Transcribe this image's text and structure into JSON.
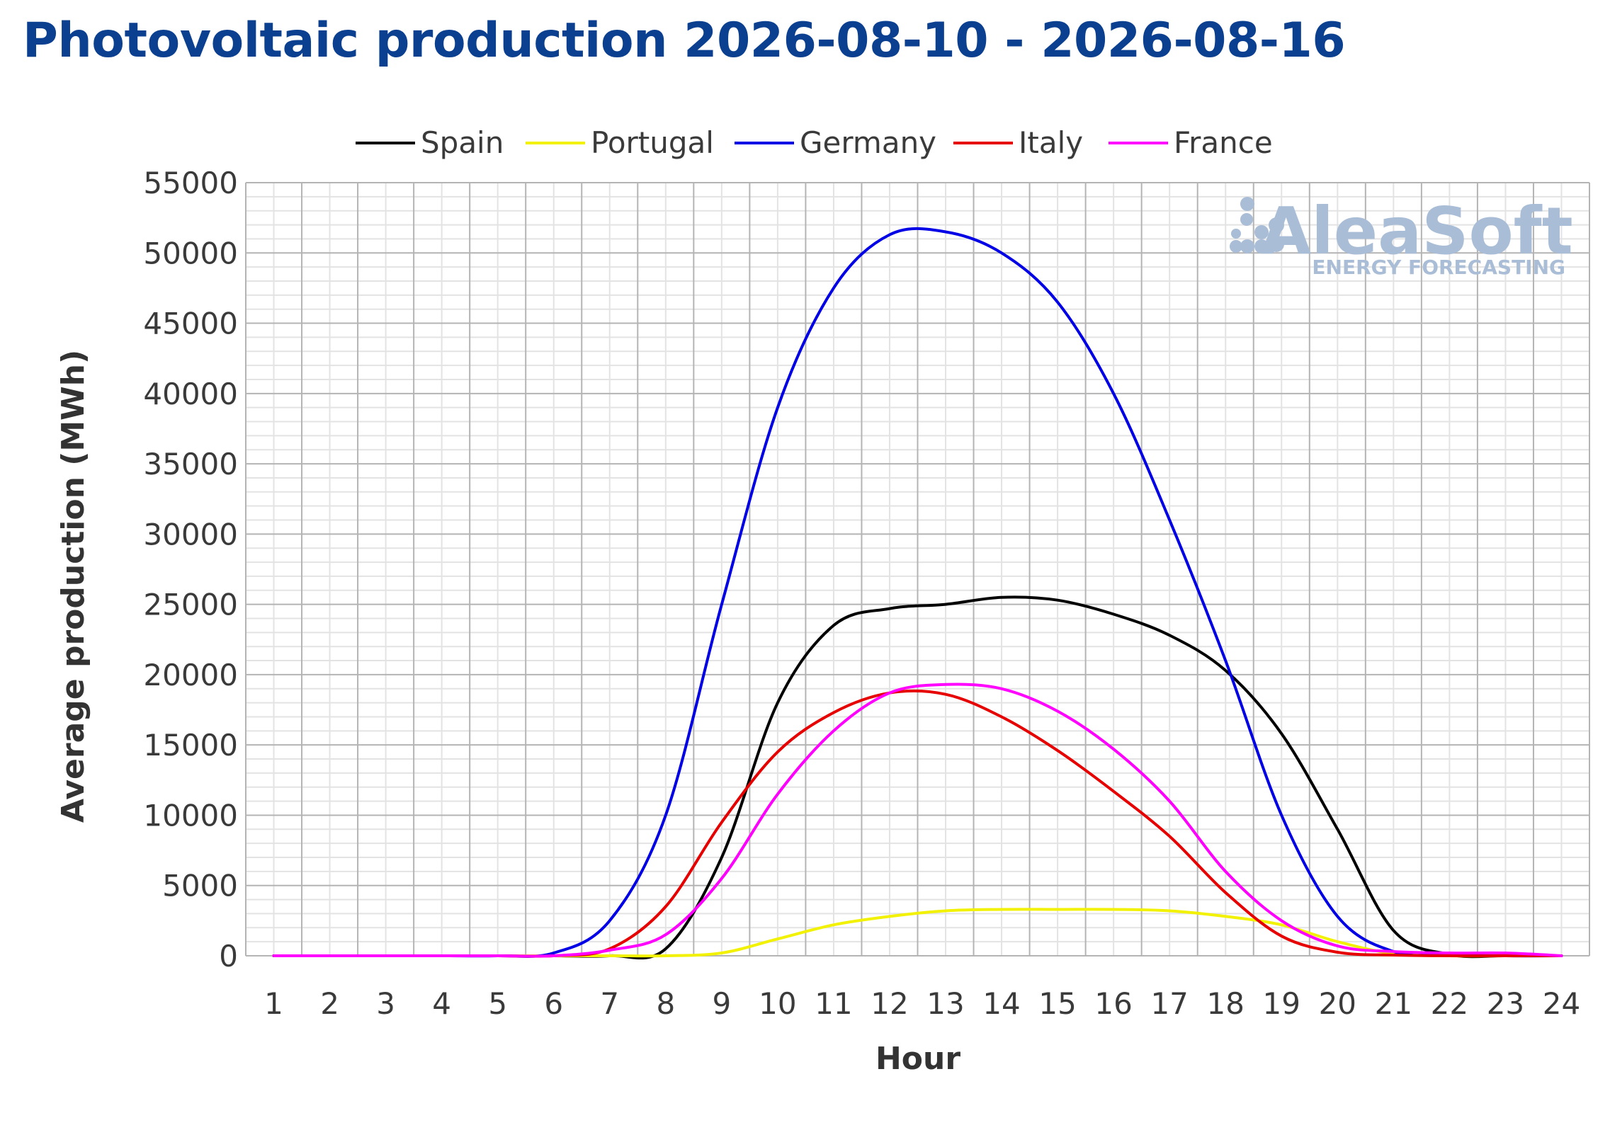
{
  "chart_data": {
    "type": "line",
    "title": "Photovoltaic production 2026-08-10 - 2026-08-16",
    "xlabel": "Hour",
    "ylabel": "Average production (MWh)",
    "x": [
      1,
      2,
      3,
      4,
      5,
      6,
      7,
      8,
      9,
      10,
      11,
      12,
      13,
      14,
      15,
      16,
      17,
      18,
      19,
      20,
      21,
      22,
      23,
      24
    ],
    "xlim": [
      0.5,
      24.5
    ],
    "ylim": [
      0,
      55000
    ],
    "y_ticks": [
      0,
      5000,
      10000,
      15000,
      20000,
      25000,
      30000,
      35000,
      40000,
      45000,
      50000,
      55000
    ],
    "grid": true,
    "legend_position": "top",
    "series": [
      {
        "name": "Spain",
        "color": "#000000",
        "values": [
          0,
          0,
          0,
          0,
          0,
          0,
          0,
          500,
          7000,
          18000,
          23500,
          24700,
          25000,
          25500,
          25300,
          24300,
          22800,
          20300,
          15800,
          9000,
          1800,
          100,
          0,
          0
        ]
      },
      {
        "name": "Portugal",
        "color": "#f2f200",
        "values": [
          0,
          0,
          0,
          0,
          0,
          0,
          0,
          0,
          200,
          1200,
          2200,
          2800,
          3200,
          3300,
          3300,
          3300,
          3200,
          2800,
          2200,
          1000,
          150,
          0,
          0,
          0
        ]
      },
      {
        "name": "Germany",
        "color": "#0000e6",
        "values": [
          0,
          0,
          0,
          0,
          0,
          200,
          2500,
          10000,
          25000,
          39000,
          47500,
          51300,
          51500,
          50000,
          46500,
          40000,
          31000,
          21000,
          10000,
          2800,
          300,
          50,
          0,
          0
        ]
      },
      {
        "name": "Italy",
        "color": "#e60000",
        "values": [
          0,
          0,
          0,
          0,
          0,
          0,
          500,
          3500,
          9500,
          14500,
          17300,
          18700,
          18600,
          17000,
          14600,
          11700,
          8500,
          4500,
          1400,
          250,
          50,
          0,
          0,
          0
        ]
      },
      {
        "name": "France",
        "color": "#ff00ff",
        "values": [
          0,
          0,
          0,
          0,
          0,
          0,
          400,
          1500,
          5500,
          11500,
          16000,
          18700,
          19300,
          19000,
          17400,
          14700,
          11000,
          6000,
          2500,
          700,
          300,
          200,
          200,
          0
        ]
      }
    ]
  },
  "watermark": {
    "brand": "AleaSoft",
    "tagline": "ENERGY FORECASTING",
    "color": "#a9bdd6"
  }
}
